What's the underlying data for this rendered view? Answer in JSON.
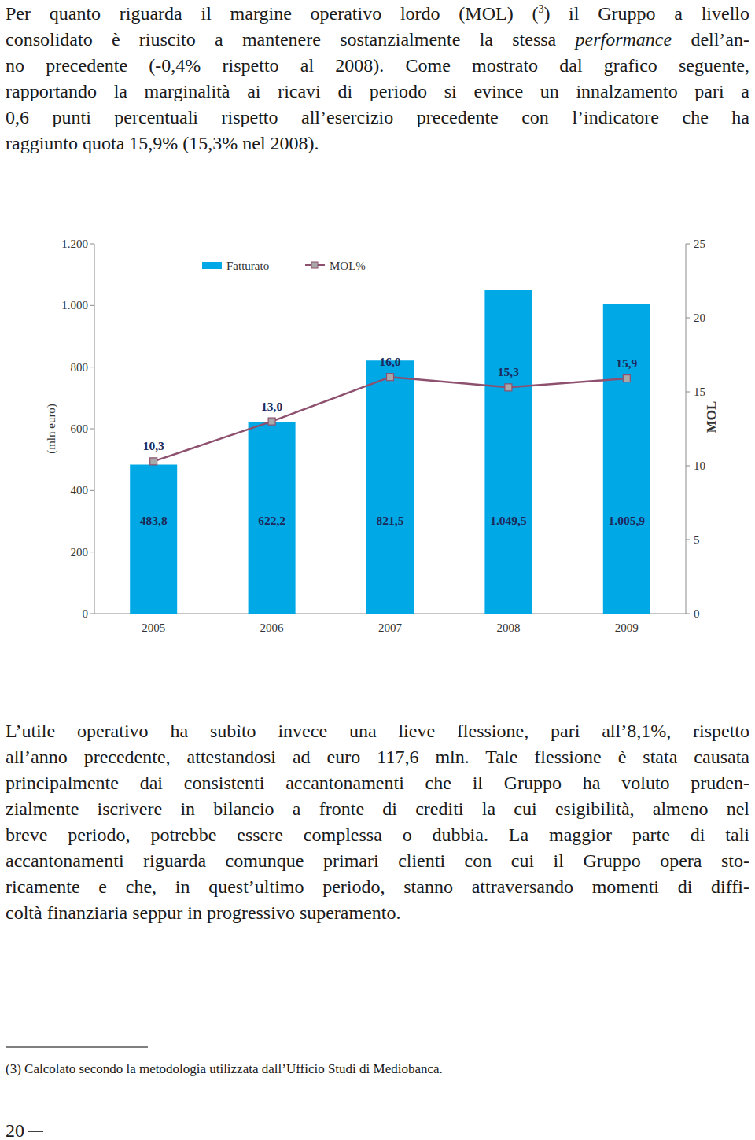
{
  "document": {
    "paragraphs": [
      {
        "lines": [
          [
            "Per quanto riguarda il margine operativo lordo (MOL) (",
            {
              "text": "3",
              "format": "sup"
            },
            ") il Gruppo a livello"
          ],
          [
            "consolidato è riuscito a mantenere sostanzialmente la stessa ",
            {
              "text": "performance",
              "format": "italic"
            },
            " dell’an-"
          ],
          [
            "no precedente (-0,4% rispetto al 2008). Come mostrato dal grafico seguente,"
          ],
          [
            "rapportando la marginalità ai ricavi di periodo si evince un innalzamento pari a"
          ],
          [
            "0,6 punti percentuali rispetto all’esercizio precedente con l’indicatore che ha"
          ],
          [
            "raggiunto quota 15,9% (15,3% nel 2008)."
          ]
        ]
      },
      {
        "lines": [
          [
            "L’utile operativo ha subìto invece una lieve flessione, pari all’8,1%, rispetto"
          ],
          [
            "all’anno precedente, attestandosi ad euro 117,6 mln. Tale flessione è stata causata"
          ],
          [
            "principalmente dai consistenti accantonamenti che il Gruppo ha voluto pruden-"
          ],
          [
            "zialmente iscrivere in bilancio a fronte di crediti la cui esigibilità, almeno nel"
          ],
          [
            "breve periodo, potrebbe essere complessa o dubbia. La maggior parte di tali"
          ],
          [
            "accantonamenti riguarda comunque primari clienti con cui il Gruppo opera sto-"
          ],
          [
            "ricamente e che, in quest’ultimo periodo, stanno attraversando momenti di diffi-"
          ],
          [
            "coltà finanziaria seppur in progressivo superamento."
          ]
        ]
      }
    ],
    "footnote": {
      "marker": "(3)",
      "text": "Calcolato secondo la metodologia utilizzata dall’Ufficio Studi di Mediobanca."
    },
    "page_number": "20"
  },
  "chart_data": {
    "type": "bar",
    "categories": [
      "2005",
      "2006",
      "2007",
      "2008",
      "2009"
    ],
    "y_label": "(mln euro)",
    "y2_label": "MOL",
    "series": [
      {
        "name": "Fatturato",
        "type": "bar",
        "color": "#00a8e6",
        "values": [
          483.8,
          622.2,
          821.5,
          1049.5,
          1005.9
        ],
        "value_labels": [
          "483,8",
          "622,2",
          "821,5",
          "1.049,5",
          "1.005,9"
        ]
      },
      {
        "name": "MOL%",
        "type": "line",
        "color": "#8e506f",
        "marker": "square",
        "axis": "y2",
        "values": [
          10.3,
          13.0,
          16.0,
          15.3,
          15.9
        ],
        "value_labels": [
          "10,3",
          "13,0",
          "16,0",
          "15,3",
          "15,9"
        ]
      }
    ],
    "ylim": [
      0,
      1200
    ],
    "yticks": [
      0,
      200,
      400,
      600,
      800,
      {
        "value": 1000,
        "label": "1.000"
      },
      {
        "value": 1200,
        "label": "1.200"
      }
    ],
    "y2lim": [
      0,
      25
    ],
    "y2ticks": [
      0,
      5,
      10,
      15,
      20,
      25
    ],
    "data_labels": true,
    "legend": "top",
    "grid": false
  }
}
